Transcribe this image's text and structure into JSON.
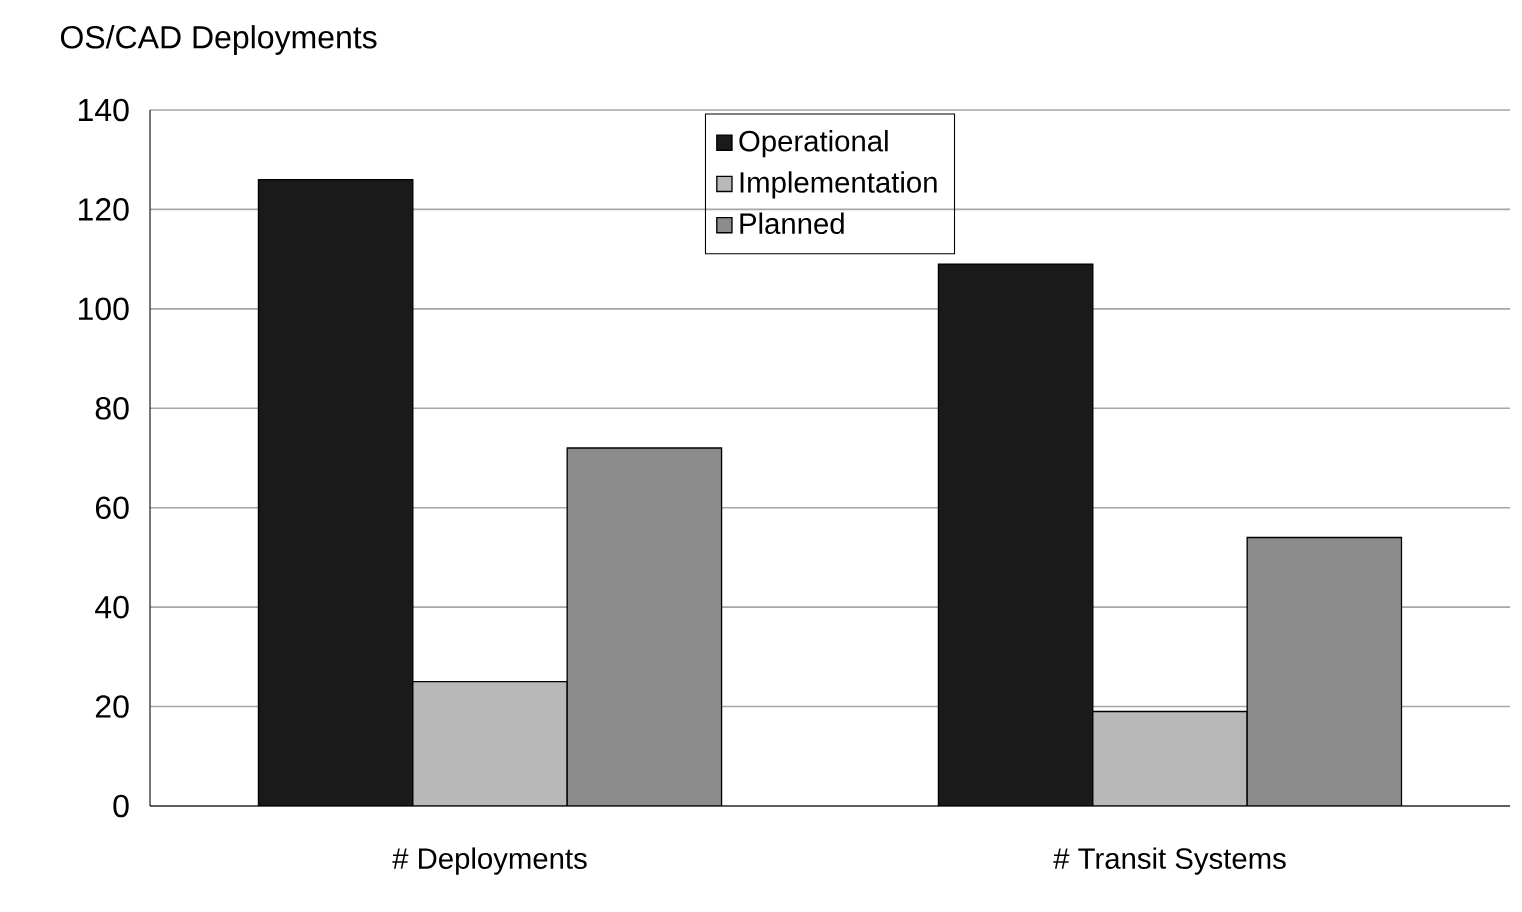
{
  "chart_data": {
    "type": "bar",
    "title": "OS/CAD Deployments",
    "categories": [
      "# Deployments",
      "# Transit Systems"
    ],
    "series": [
      {
        "name": "Operational",
        "color": "#1a1a1a",
        "values": [
          126,
          109
        ]
      },
      {
        "name": "Implementation",
        "color": "#b8b8b8",
        "values": [
          25,
          19
        ]
      },
      {
        "name": "Planned",
        "color": "#8c8c8c",
        "values": [
          72,
          54
        ]
      }
    ],
    "ylim": [
      0,
      140
    ],
    "yticks": [
      0,
      20,
      40,
      60,
      80,
      100,
      120,
      140
    ],
    "grid": "y",
    "legend": "top"
  }
}
